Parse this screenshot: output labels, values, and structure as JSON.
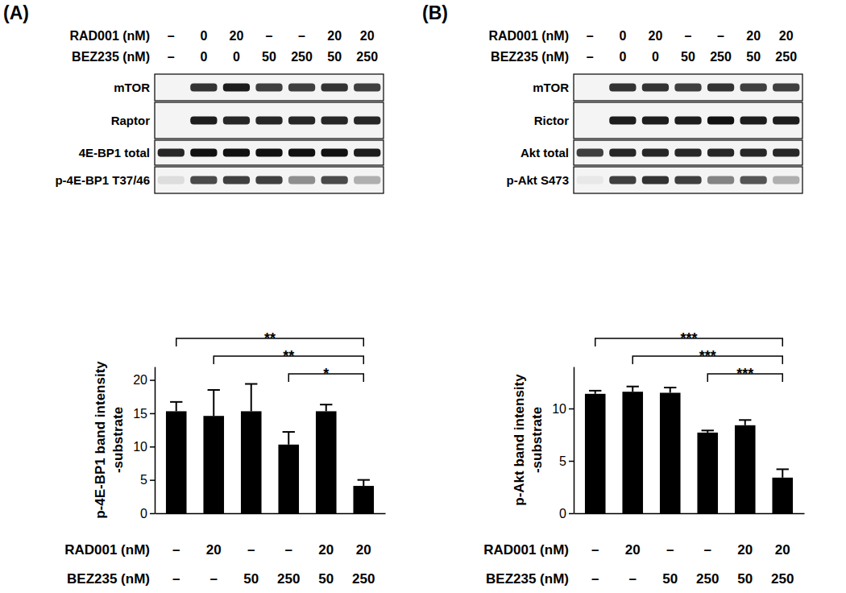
{
  "panels": [
    {
      "label": "(A)",
      "treatment_rows": [
        {
          "label": "RAD001 (nM)",
          "cells": [
            "–",
            "0",
            "20",
            "–",
            "–",
            "20",
            "20"
          ]
        },
        {
          "label": "BEZ235 (nM)",
          "cells": [
            "–",
            "0",
            "0",
            "50",
            "250",
            "50",
            "250"
          ]
        }
      ],
      "blots": [
        {
          "label": "mTOR",
          "intensity": [
            0,
            0.85,
            0.95,
            0.8,
            0.8,
            0.85,
            0.8
          ]
        },
        {
          "label": "Raptor",
          "intensity": [
            0,
            0.95,
            0.9,
            0.9,
            0.9,
            0.9,
            0.9
          ]
        },
        {
          "label": "4E-BP1 total",
          "intensity": [
            0.9,
            1,
            1,
            1,
            1,
            1,
            0.95
          ]
        },
        {
          "label": "p-4E-BP1 T37/46",
          "intensity": [
            0.1,
            0.75,
            0.8,
            0.8,
            0.45,
            0.75,
            0.3
          ]
        }
      ]
    },
    {
      "label": "(B)",
      "treatment_rows": [
        {
          "label": "RAD001 (nM)",
          "cells": [
            "–",
            "0",
            "20",
            "–",
            "–",
            "20",
            "20"
          ]
        },
        {
          "label": "BEZ235 (nM)",
          "cells": [
            "–",
            "0",
            "0",
            "50",
            "250",
            "50",
            "250"
          ]
        }
      ],
      "blots": [
        {
          "label": "mTOR",
          "intensity": [
            0,
            0.85,
            0.85,
            0.8,
            0.85,
            0.8,
            0.8
          ]
        },
        {
          "label": "Rictor",
          "intensity": [
            0,
            0.95,
            0.95,
            0.95,
            1,
            0.95,
            0.95
          ]
        },
        {
          "label": "Akt total",
          "intensity": [
            0.8,
            0.9,
            0.9,
            0.9,
            0.9,
            0.9,
            0.9
          ]
        },
        {
          "label": "p-Akt S473",
          "intensity": [
            0.05,
            0.8,
            0.85,
            0.8,
            0.5,
            0.7,
            0.3
          ]
        }
      ]
    }
  ],
  "chart_data": [
    {
      "type": "bar",
      "y_label": [
        "p-4E-BP1 band intensity",
        "-substrate"
      ],
      "x_label_rows": [
        {
          "label": "RAD001 (nM)",
          "categories": [
            "–",
            "20",
            "–",
            "–",
            "20",
            "20"
          ]
        },
        {
          "label": "BEZ235 (nM)",
          "categories": [
            "–",
            "–",
            "50",
            "250",
            "50",
            "250"
          ]
        }
      ],
      "values": [
        15.3,
        14.6,
        15.3,
        10.3,
        15.3,
        4.1
      ],
      "errors": [
        1.4,
        3.9,
        4.1,
        1.9,
        1.0,
        0.9
      ],
      "color": "#000000",
      "ylim": [
        0,
        22
      ],
      "yticks": [
        0,
        5,
        10,
        15,
        20
      ],
      "annotations": [
        {
          "from": 0,
          "to": 5,
          "label": "**"
        },
        {
          "from": 1,
          "to": 5,
          "label": "**"
        },
        {
          "from": 3,
          "to": 5,
          "label": "*"
        }
      ]
    },
    {
      "type": "bar",
      "y_label": [
        "p-Akt band intensity",
        "-substrate"
      ],
      "x_label_rows": [
        {
          "label": "RAD001 (nM)",
          "categories": [
            "–",
            "20",
            "–",
            "–",
            "20",
            "20"
          ]
        },
        {
          "label": "BEZ235 (nM)",
          "categories": [
            "–",
            "–",
            "50",
            "250",
            "50",
            "250"
          ]
        }
      ],
      "values": [
        11.4,
        11.6,
        11.5,
        7.7,
        8.4,
        3.4
      ],
      "errors": [
        0.3,
        0.5,
        0.5,
        0.2,
        0.5,
        0.8
      ],
      "color": "#000000",
      "ylim": [
        0,
        14
      ],
      "yticks": [
        0,
        5,
        10
      ],
      "annotations": [
        {
          "from": 0,
          "to": 5,
          "label": "***"
        },
        {
          "from": 1,
          "to": 5,
          "label": "***"
        },
        {
          "from": 3,
          "to": 5,
          "label": "***"
        }
      ]
    }
  ]
}
